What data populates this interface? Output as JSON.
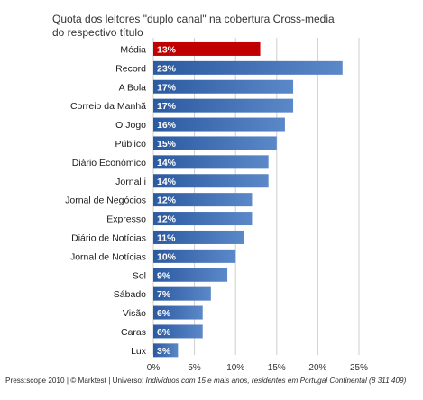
{
  "chart_data": {
    "type": "bar",
    "orientation": "horizontal",
    "title_line1": "Quota dos leitores \"duplo canal\" na cobertura Cross-media",
    "title_line2": "do respectivo título",
    "categories": [
      "Média",
      "Record",
      "A Bola",
      "Correio da Manhã",
      "O Jogo",
      "Público",
      "Diário Económico",
      "Jornal i",
      "Jornal de Negócios",
      "Expresso",
      "Diário de Notícias",
      "Jornal de Notícias",
      "Sol",
      "Sábado",
      "Visão",
      "Caras",
      "Lux"
    ],
    "values": [
      13,
      23,
      17,
      17,
      16,
      15,
      14,
      14,
      12,
      12,
      11,
      10,
      9,
      7,
      6,
      6,
      3
    ],
    "value_labels": [
      "13%",
      "23%",
      "17%",
      "17%",
      "16%",
      "15%",
      "14%",
      "14%",
      "12%",
      "12%",
      "11%",
      "10%",
      "9%",
      "7%",
      "6%",
      "6%",
      "3%"
    ],
    "highlight_category": "Média",
    "xlim": [
      0,
      25
    ],
    "xticks": [
      "0%",
      "5%",
      "10%",
      "15%",
      "20%",
      "25%"
    ],
    "grid": "vertical",
    "colors": {
      "highlight": "#c00000",
      "bar": "#3a6bb6",
      "bar_light": "#5b88c8",
      "grid": "#cfcfcf"
    }
  },
  "footer": {
    "source": "Press:scope 2010 | © Marktest | Universo: ",
    "universe": "Indivíduos com 15 e mais anos, residentes em Portugal Continental (8 311 409)"
  }
}
